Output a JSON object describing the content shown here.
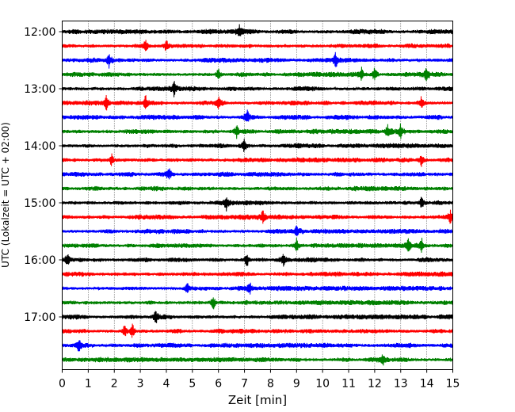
{
  "chart_data": {
    "type": "line",
    "xlabel": "Zeit  [min]",
    "ylabel": "UTC (Lokalzeit = UTC + 02:00)",
    "xlim": [
      0,
      15
    ],
    "x_ticks": [
      "0",
      "1",
      "2",
      "3",
      "4",
      "5",
      "6",
      "7",
      "8",
      "9",
      "10",
      "11",
      "12",
      "13",
      "14",
      "15"
    ],
    "y_ticks": [
      "12:00",
      "13:00",
      "14:00",
      "15:00",
      "16:00",
      "17:00"
    ],
    "grid": "vertical dotted lines at each minute",
    "trace_colors": [
      "#000000",
      "#ff0000",
      "#0000ff",
      "#008000"
    ],
    "trace_interval_minutes": 15,
    "traces": [
      {
        "start": "12:00",
        "events": [
          6.8
        ]
      },
      {
        "start": "12:15",
        "events": [
          3.2,
          4.0
        ]
      },
      {
        "start": "12:30",
        "events": [
          1.8,
          10.5
        ]
      },
      {
        "start": "12:45",
        "events": [
          6.0,
          11.5,
          12.0,
          14.0
        ]
      },
      {
        "start": "13:00",
        "events": [
          4.3
        ]
      },
      {
        "start": "13:15",
        "events": [
          1.7,
          3.2,
          6.0,
          13.8
        ]
      },
      {
        "start": "13:30",
        "events": [
          7.1
        ]
      },
      {
        "start": "13:45",
        "events": [
          6.7,
          12.5,
          13.0
        ]
      },
      {
        "start": "14:00",
        "events": [
          7.0
        ]
      },
      {
        "start": "14:15",
        "events": [
          1.9,
          13.8
        ]
      },
      {
        "start": "14:30",
        "events": [
          4.1
        ]
      },
      {
        "start": "14:45",
        "events": []
      },
      {
        "start": "15:00",
        "events": [
          6.3,
          13.8
        ]
      },
      {
        "start": "15:15",
        "events": [
          7.7,
          14.9
        ]
      },
      {
        "start": "15:30",
        "events": [
          9.0
        ]
      },
      {
        "start": "15:45",
        "events": [
          9.0,
          13.3,
          13.8
        ]
      },
      {
        "start": "16:00",
        "events": [
          0.2,
          7.1,
          8.5
        ]
      },
      {
        "start": "16:15",
        "events": []
      },
      {
        "start": "16:30",
        "events": [
          4.8,
          7.2
        ]
      },
      {
        "start": "16:45",
        "events": [
          5.8
        ]
      },
      {
        "start": "17:00",
        "events": [
          3.6
        ]
      },
      {
        "start": "17:15",
        "events": [
          2.4,
          2.7
        ]
      },
      {
        "start": "17:30",
        "events": [
          0.65
        ]
      },
      {
        "start": "17:45",
        "events": [
          12.3
        ]
      }
    ]
  }
}
